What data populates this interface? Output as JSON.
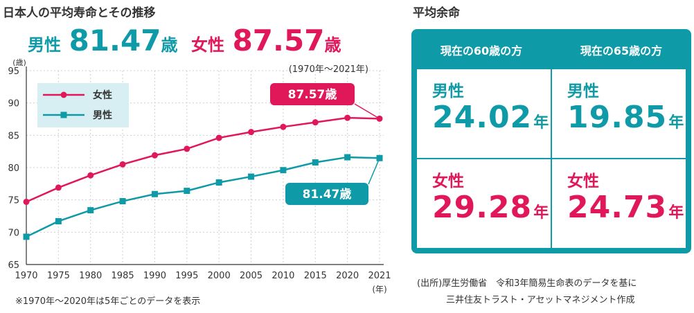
{
  "title": "日本人の平均寿命とその推移",
  "headline": {
    "male_label": "男性",
    "male_value": "81.47",
    "female_label": "女性",
    "female_value": "87.57",
    "unit": "歳"
  },
  "colors": {
    "female": "#e0185a",
    "male": "#0e9aa7",
    "legend_bg": "#d7eef2"
  },
  "chart_data": {
    "type": "line",
    "y_unit_label": "(歳)",
    "x_unit_label": "(年)",
    "period_note": "(1970年～2021年)",
    "categories": [
      "1970",
      "1975",
      "1980",
      "1985",
      "1990",
      "1995",
      "2000",
      "2005",
      "2010",
      "2015",
      "2020",
      "2021"
    ],
    "ylim": [
      65,
      95
    ],
    "yticks": [
      65,
      70,
      75,
      80,
      85,
      90,
      95
    ],
    "grid": true,
    "legend": "top-left",
    "series": [
      {
        "name": "女性",
        "color": "#e0185a",
        "marker": "circle",
        "values": [
          74.7,
          76.9,
          78.8,
          80.5,
          81.9,
          82.9,
          84.6,
          85.5,
          86.3,
          87.0,
          87.7,
          87.57
        ]
      },
      {
        "name": "男性",
        "color": "#0e9aa7",
        "marker": "square",
        "values": [
          69.3,
          71.7,
          73.4,
          74.8,
          75.9,
          76.4,
          77.7,
          78.6,
          79.6,
          80.8,
          81.6,
          81.47
        ]
      }
    ],
    "annotations": [
      {
        "series": "女性",
        "text": "87.57歳"
      },
      {
        "series": "男性",
        "text": "81.47歳"
      }
    ]
  },
  "footnote_left": "※1970年～2020年は5年ごとのデータを表示",
  "table": {
    "title": "平均余命",
    "headers": [
      "現在の60歳の方",
      "現在の65歳の方"
    ],
    "unit": "年",
    "rows": [
      {
        "label": "男性",
        "values": [
          "24.02",
          "19.85"
        ]
      },
      {
        "label": "女性",
        "values": [
          "29.28",
          "24.73"
        ]
      }
    ]
  },
  "source_line1": "(出所)厚生労働省　令和3年簡易生命表のデータを基に",
  "source_line2": "三井住友トラスト・アセットマネジメント作成"
}
